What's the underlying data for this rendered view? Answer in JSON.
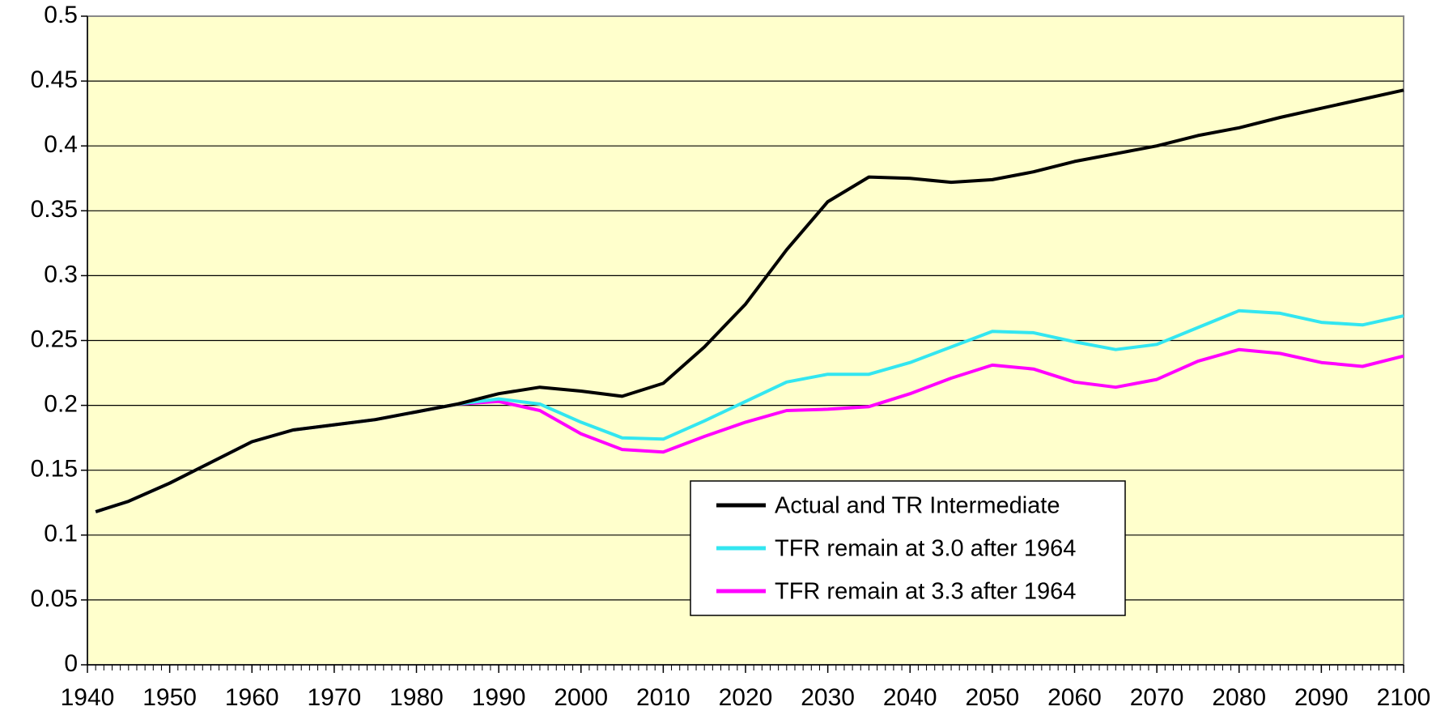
{
  "chart_data": {
    "type": "line",
    "x": [
      1941,
      1945,
      1950,
      1955,
      1960,
      1965,
      1970,
      1975,
      1980,
      1985,
      1990,
      1995,
      2000,
      2005,
      2010,
      2015,
      2020,
      2025,
      2030,
      2035,
      2040,
      2045,
      2050,
      2055,
      2060,
      2065,
      2070,
      2075,
      2080,
      2085,
      2090,
      2095,
      2100
    ],
    "series": [
      {
        "name": "Actual and TR Intermediate",
        "color": "#000000",
        "values": [
          0.118,
          0.126,
          0.14,
          0.156,
          0.172,
          0.181,
          0.185,
          0.189,
          0.195,
          0.201,
          0.209,
          0.214,
          0.211,
          0.207,
          0.217,
          0.245,
          0.278,
          0.32,
          0.357,
          0.376,
          0.375,
          0.372,
          0.374,
          0.38,
          0.388,
          0.394,
          0.4,
          0.408,
          0.414,
          0.422,
          0.429,
          0.436,
          0.443
        ]
      },
      {
        "name": "TFR remain at 3.0 after 1964",
        "color": "#33e6f0",
        "values": [
          0.118,
          0.126,
          0.14,
          0.156,
          0.172,
          0.181,
          0.185,
          0.189,
          0.195,
          0.201,
          0.205,
          0.201,
          0.187,
          0.175,
          0.174,
          0.188,
          0.203,
          0.218,
          0.224,
          0.224,
          0.233,
          0.245,
          0.257,
          0.256,
          0.249,
          0.243,
          0.247,
          0.26,
          0.273,
          0.271,
          0.264,
          0.262,
          0.269
        ]
      },
      {
        "name": "TFR remain at 3.3 after 1964",
        "color": "#ff00ff",
        "values": [
          0.118,
          0.126,
          0.14,
          0.156,
          0.172,
          0.181,
          0.185,
          0.189,
          0.195,
          0.201,
          0.203,
          0.196,
          0.178,
          0.166,
          0.164,
          0.176,
          0.187,
          0.196,
          0.197,
          0.199,
          0.209,
          0.221,
          0.231,
          0.228,
          0.218,
          0.214,
          0.22,
          0.234,
          0.243,
          0.24,
          0.233,
          0.23,
          0.238
        ]
      }
    ],
    "xlim": [
      1940,
      2100
    ],
    "xticks": [
      1940,
      1950,
      1960,
      1970,
      1980,
      1990,
      2000,
      2010,
      2020,
      2030,
      2040,
      2050,
      2060,
      2070,
      2080,
      2090,
      2100
    ],
    "ylim": [
      0,
      0.5
    ],
    "yticks": [
      0,
      0.05,
      0.1,
      0.15,
      0.2,
      0.25,
      0.3,
      0.35,
      0.4,
      0.45,
      0.5
    ],
    "grid": true,
    "legend": "lower right"
  }
}
